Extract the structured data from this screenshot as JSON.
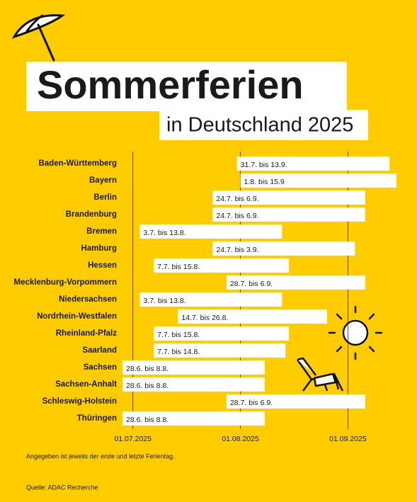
{
  "chart_data": {
    "type": "gantt",
    "title": "Sommerferien",
    "subtitle": "in Deutschland 2025",
    "categories": [
      "Baden-Württemberg",
      "Bayern",
      "Berlin",
      "Brandenburg",
      "Bremen",
      "Hamburg",
      "Hessen",
      "Mecklenburg-Vorpommern",
      "Niedersachsen",
      "Nordrhein-Westfalen",
      "Rheinland-Pfalz",
      "Saarland",
      "Sachsen",
      "Sachsen-Anhalt",
      "Schleswig-Holstein",
      "Thüringen"
    ],
    "starts": [
      "2025-07-31",
      "2025-08-01",
      "2025-07-24",
      "2025-07-24",
      "2025-07-03",
      "2025-07-24",
      "2025-07-07",
      "2025-07-28",
      "2025-07-03",
      "2025-07-14",
      "2025-07-07",
      "2025-07-07",
      "2025-06-28",
      "2025-06-28",
      "2025-07-28",
      "2025-06-28"
    ],
    "ends": [
      "2025-09-13",
      "2025-09-15",
      "2025-09-06",
      "2025-09-06",
      "2025-08-13",
      "2025-09-03",
      "2025-08-15",
      "2025-09-06",
      "2025-08-13",
      "2025-08-26",
      "2025-08-15",
      "2025-08-14",
      "2025-08-08",
      "2025-08-08",
      "2025-09-06",
      "2025-08-08"
    ],
    "value_labels": [
      "31.7. bis 13.9.",
      "1.8. bis 15.9",
      "24.7. bis 6.9.",
      "24.7. bis 6.9.",
      "3.7. bis 13.8.",
      "24.7. bis 3.9.",
      "7.7. bis 15.8.",
      "28.7. bis 6.9.",
      "3.7. bis 13.8.",
      "14.7. bis 26.8.",
      "7.7. bis 15.8.",
      "7.7. bis 14.8.",
      "28.6. bis 8.8.",
      "28.6. bis 8.8.",
      "28.7. bis 6.9.",
      "28.6. bis 8.8."
    ],
    "color": "#ffffff",
    "xlim": [
      "2025-06-28",
      "2025-09-15"
    ],
    "xticks": [
      {
        "value": "2025-07-01",
        "label": "01.07.2025"
      },
      {
        "value": "2025-08-01",
        "label": "01.08.2025"
      },
      {
        "value": "2025-09-01",
        "label": "01.09.2025"
      }
    ],
    "grid": true,
    "note": "Angegeben ist jeweils der erste und letzte Ferientag.",
    "source": "Quelle: ADAC Recherche"
  }
}
